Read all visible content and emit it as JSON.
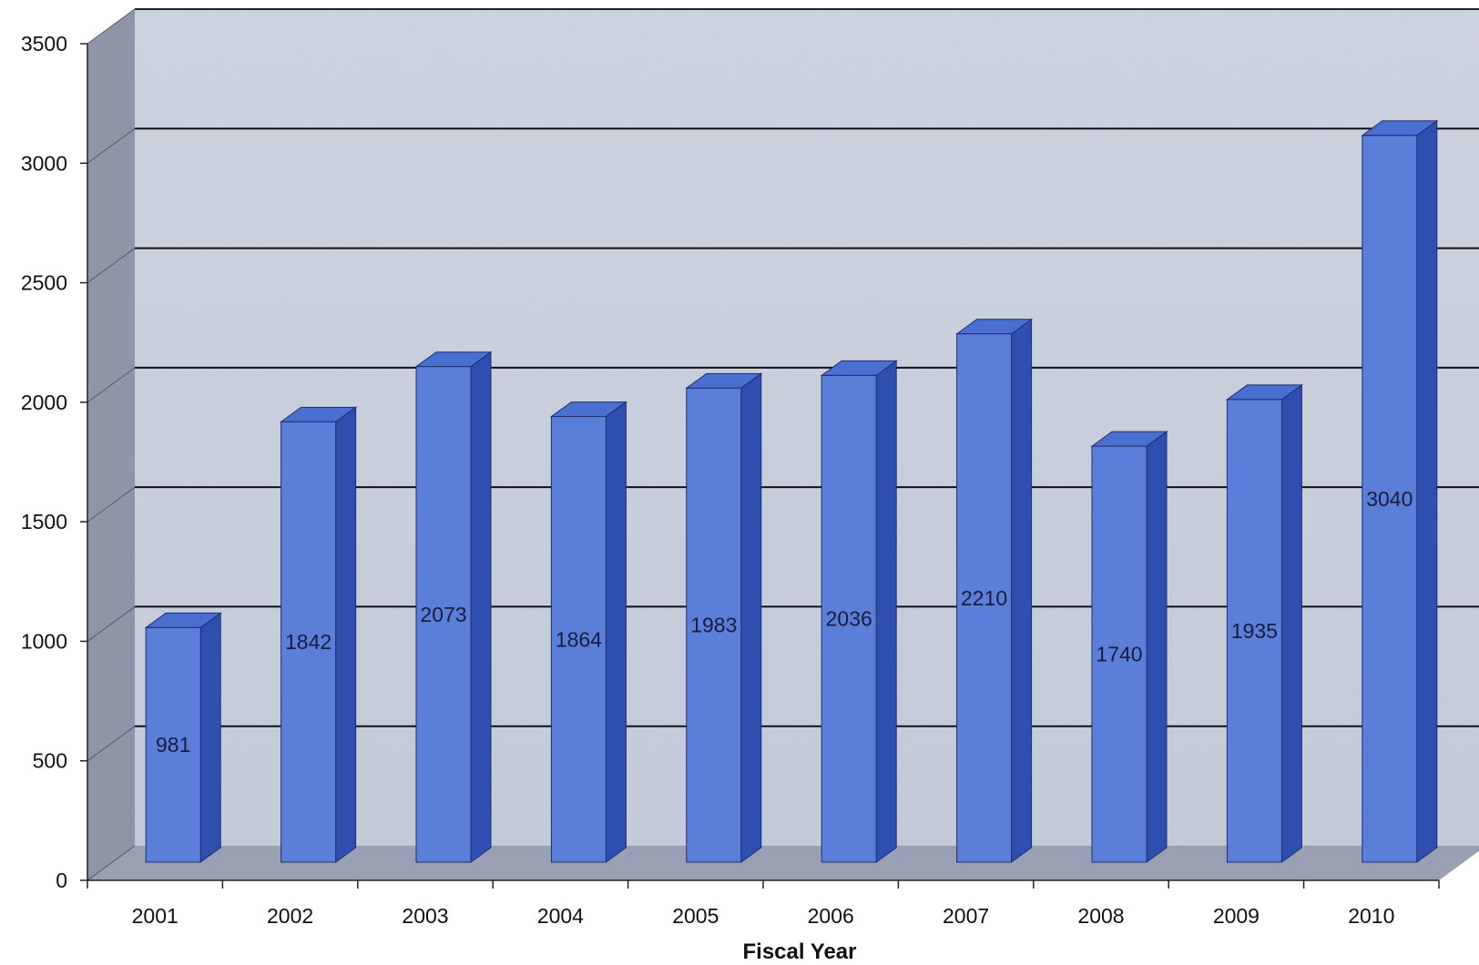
{
  "chart_data": {
    "type": "bar",
    "title": "",
    "xlabel": "Fiscal Year",
    "ylabel": "",
    "categories": [
      "2001",
      "2002",
      "2003",
      "2004",
      "2005",
      "2006",
      "2007",
      "2008",
      "2009",
      "2010"
    ],
    "values": [
      981,
      1842,
      2073,
      1864,
      1983,
      2036,
      2210,
      1740,
      1935,
      3040
    ],
    "data_labels": [
      "981",
      "1842",
      "2073",
      "1864",
      "1983",
      "2036",
      "2210",
      "1740",
      "1935",
      "3040"
    ],
    "ylim": [
      0,
      3500
    ],
    "yticks": [
      "0",
      "500",
      "1000",
      "1500",
      "2000",
      "2500",
      "3000",
      "3500"
    ],
    "ytick_values": [
      0,
      500,
      1000,
      1500,
      2000,
      2500,
      3000,
      3500
    ],
    "grid": true,
    "legend": "none",
    "style": "3d-column",
    "colors": {
      "bar_front": "#5b7fd9",
      "bar_side": "#2f4fb0",
      "bar_top": "#4a6fd0",
      "back_wall": "#c9d0dc",
      "side_wall": "#8e95a8",
      "floor": "#9aa0b4",
      "gridline": "#111111"
    }
  }
}
